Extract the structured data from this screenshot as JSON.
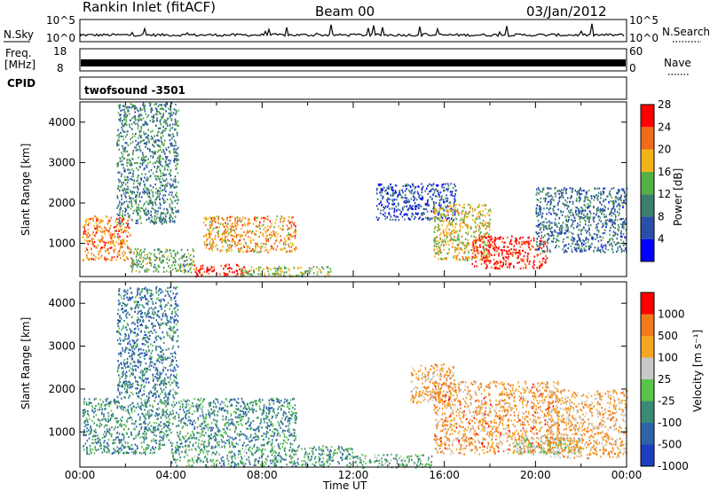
{
  "header": {
    "station": "Rankin Inlet (fitACF)",
    "beam": "Beam 00",
    "date": "03/Jan/2012"
  },
  "sky_panel": {
    "left_label": "N.Sky",
    "left_top_tick": "10^5",
    "left_bottom_tick": "10^0",
    "right_label": "N.Search",
    "right_top_tick": "10^5",
    "right_bottom_tick": "10^0"
  },
  "freq_panel": {
    "left_label_1": "Freq.",
    "left_label_2": "[MHz]",
    "left_top_tick": "18",
    "left_bottom_tick": "8",
    "right_label": "Nave",
    "right_top_tick": "60",
    "right_bottom_tick": "0"
  },
  "cpid_panel": {
    "label": "CPID",
    "program": "twofsound  -3501"
  },
  "chart_data": [
    {
      "type": "heatmap",
      "panel": "power",
      "ylabel": "Slant Range [km]",
      "ylim": [
        180,
        4500
      ],
      "yticks": [
        "1000",
        "2000",
        "3000",
        "4000"
      ],
      "xlabel": "",
      "xlim_hours": [
        0,
        24
      ],
      "colorbar": {
        "label": "Power [dB]",
        "ticks": [
          "4",
          "8",
          "12",
          "16",
          "20",
          "24",
          "28"
        ],
        "colors": [
          "#0000ff",
          "#2a4fa8",
          "#3d7f6e",
          "#54b043",
          "#f2b21a",
          "#f26b1a",
          "#ff0000"
        ]
      },
      "regions": [
        {
          "t": [
            0.1,
            2.2
          ],
          "r": [
            600,
            1700
          ],
          "level": 0.75
        },
        {
          "t": [
            1.6,
            4.3
          ],
          "r": [
            1500,
            4500
          ],
          "level": 0.35
        },
        {
          "t": [
            2.2,
            5.0
          ],
          "r": [
            300,
            900
          ],
          "level": 0.45
        },
        {
          "t": [
            5.0,
            7.2
          ],
          "r": [
            200,
            500
          ],
          "level": 0.95
        },
        {
          "t": [
            5.4,
            9.5
          ],
          "r": [
            800,
            1700
          ],
          "level": 0.7
        },
        {
          "t": [
            7.0,
            11.0
          ],
          "r": [
            200,
            450
          ],
          "level": 0.55
        },
        {
          "t": [
            13.0,
            16.5
          ],
          "r": [
            1600,
            2500
          ],
          "level": 0.2
        },
        {
          "t": [
            15.5,
            18.0
          ],
          "r": [
            600,
            2000
          ],
          "level": 0.6
        },
        {
          "t": [
            17.2,
            20.5
          ],
          "r": [
            400,
            1200
          ],
          "level": 0.92
        },
        {
          "t": [
            20.0,
            24.0
          ],
          "r": [
            800,
            2400
          ],
          "level": 0.3
        }
      ]
    },
    {
      "type": "heatmap",
      "panel": "velocity",
      "ylabel": "Slant Range [km]",
      "ylim": [
        180,
        4500
      ],
      "yticks": [
        "1000",
        "2000",
        "3000",
        "4000"
      ],
      "xlabel": "Time UT",
      "xlim_hours": [
        0,
        24
      ],
      "xticks": [
        "00:00",
        "04:00",
        "08:00",
        "12:00",
        "16:00",
        "20:00",
        "00:00"
      ],
      "colorbar": {
        "label": "Velocity [m s⁻¹]",
        "ticks": [
          "1000",
          "500",
          "100",
          "25",
          "-25",
          "-100",
          "-500",
          "-1000"
        ],
        "colors": [
          "#1d3fbf",
          "#2e63a8",
          "#3a8a77",
          "#59c44a",
          "#c9c9c9",
          "#f5a623",
          "#f07a1c",
          "#ff0000"
        ]
      },
      "regions": [
        {
          "t": [
            0.1,
            3.5
          ],
          "r": [
            500,
            1800
          ],
          "level": 0.3
        },
        {
          "t": [
            1.6,
            4.3
          ],
          "r": [
            1800,
            4400
          ],
          "level": 0.25
        },
        {
          "t": [
            3.5,
            9.5
          ],
          "r": [
            700,
            1800
          ],
          "level": 0.3
        },
        {
          "t": [
            4.0,
            12.0
          ],
          "r": [
            200,
            700
          ],
          "level": 0.35
        },
        {
          "t": [
            12.0,
            15.5
          ],
          "r": [
            180,
            500
          ],
          "level": 0.4
        },
        {
          "t": [
            14.5,
            16.5
          ],
          "r": [
            1700,
            2600
          ],
          "level": 0.7
        },
        {
          "t": [
            15.5,
            21.0
          ],
          "r": [
            500,
            2200
          ],
          "level": 0.72
        },
        {
          "t": [
            19.0,
            22.0
          ],
          "r": [
            500,
            900
          ],
          "level": 0.5
        },
        {
          "t": [
            20.5,
            24.0
          ],
          "r": [
            400,
            2000
          ],
          "level": 0.7
        }
      ]
    }
  ]
}
